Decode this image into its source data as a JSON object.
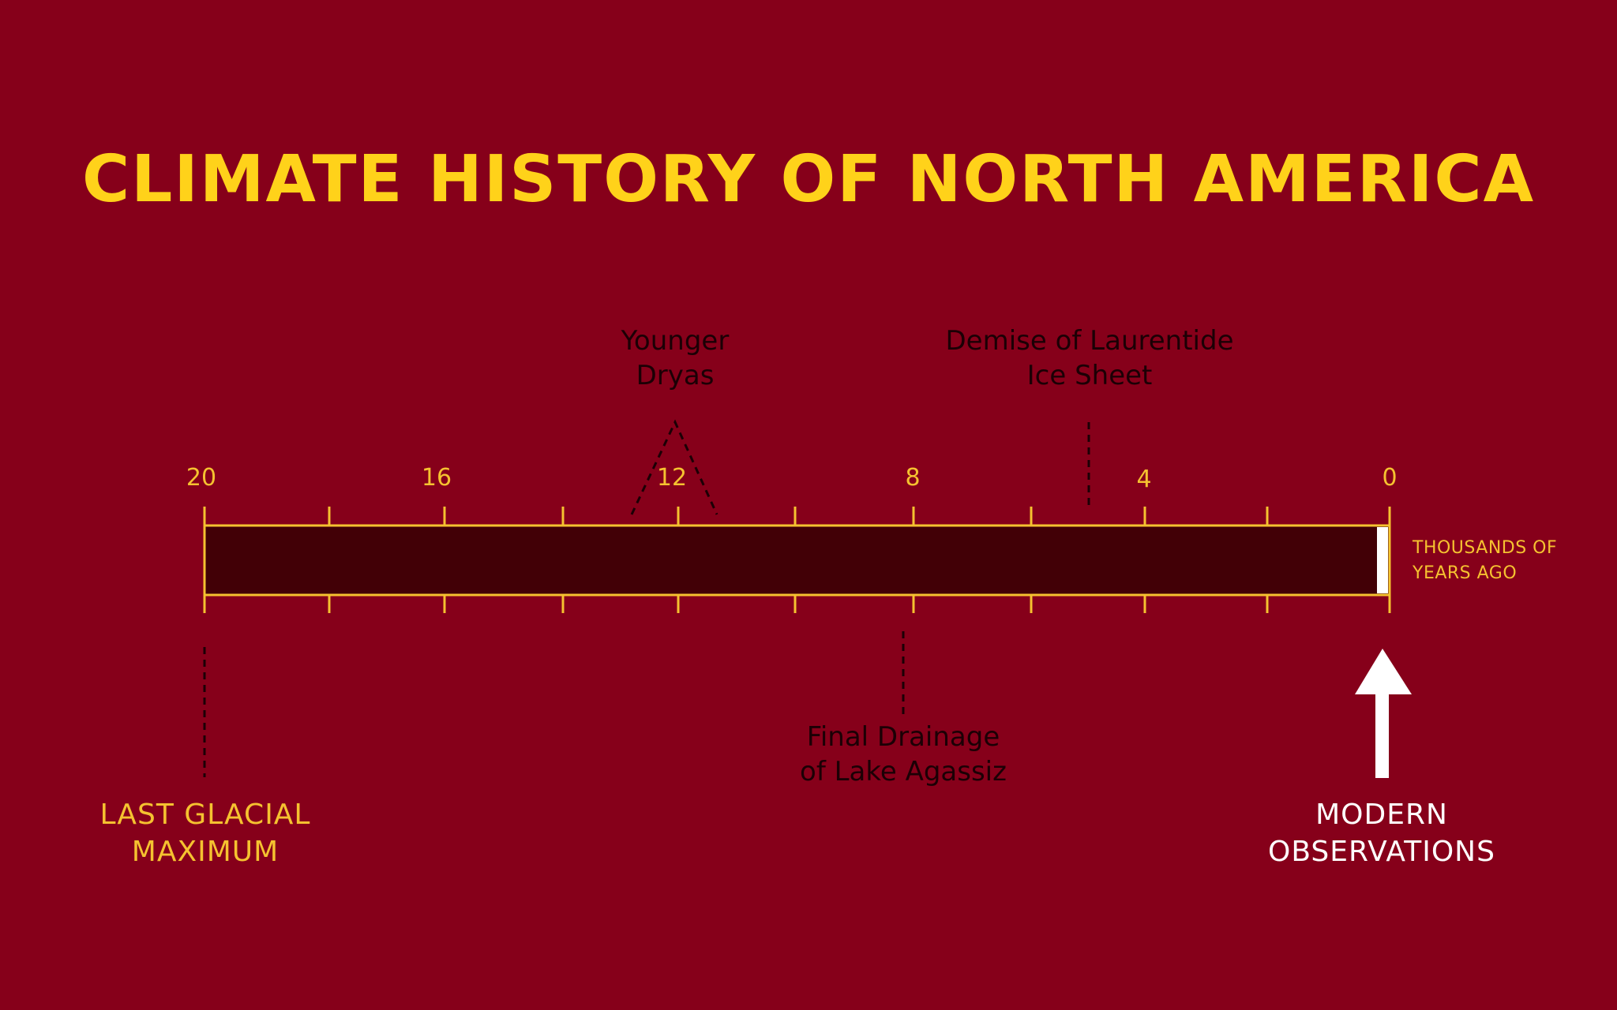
{
  "title": "CLIMATE HISTORY OF NORTH AMERICA",
  "timeline": {
    "axis_start": 20,
    "axis_end": 0,
    "tick_labels": [
      "20",
      "16",
      "12",
      "8",
      "4",
      "0"
    ],
    "unit_label": [
      "THOUSANDS OF",
      "YEARS AGO"
    ]
  },
  "events": {
    "younger_dryas": {
      "label": [
        "Younger",
        "Dryas"
      ]
    },
    "laurentide": {
      "label": [
        "Demise of Laurentide",
        "Ice Sheet"
      ]
    },
    "agassiz": {
      "label": [
        "Final Drainage",
        "of Lake Agassiz"
      ]
    },
    "lgm": {
      "label": [
        "LAST GLACIAL",
        "MAXIMUM"
      ]
    },
    "modern": {
      "label": [
        "MODERN",
        "OBSERVATIONS"
      ]
    }
  },
  "colors": {
    "background": "#86001a",
    "bar_fill": "#420006",
    "accent": "#f5c230",
    "title": "#ffd21a",
    "annotation_text": "#1b0005",
    "modern": "#ffffff"
  }
}
